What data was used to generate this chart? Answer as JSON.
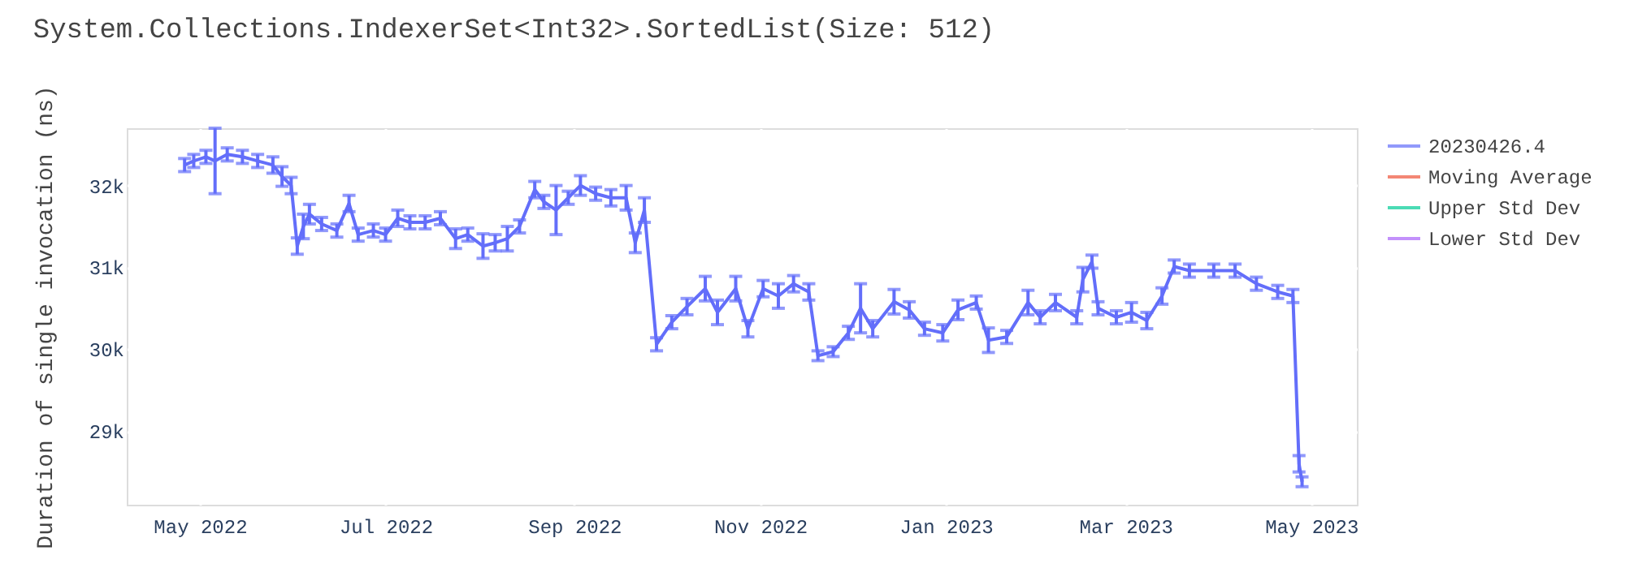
{
  "chart_data": {
    "type": "line",
    "title": "System.Collections.IndexerSet<Int32>.SortedList(Size: 512)",
    "ylabel": "Duration of single invocation (ns)",
    "x": [
      "2022-04-26",
      "2022-04-29",
      "2022-05-03",
      "2022-05-06",
      "2022-05-10",
      "2022-05-15",
      "2022-05-20",
      "2022-05-25",
      "2022-05-28",
      "2022-05-31",
      "2022-06-02",
      "2022-06-04",
      "2022-06-06",
      "2022-06-10",
      "2022-06-15",
      "2022-06-19",
      "2022-06-22",
      "2022-06-27",
      "2022-07-01",
      "2022-07-05",
      "2022-07-09",
      "2022-07-14",
      "2022-07-19",
      "2022-07-24",
      "2022-07-28",
      "2022-08-02",
      "2022-08-06",
      "2022-08-10",
      "2022-08-14",
      "2022-08-19",
      "2022-08-22",
      "2022-08-26",
      "2022-08-30",
      "2022-09-03",
      "2022-09-08",
      "2022-09-13",
      "2022-09-18",
      "2022-09-21",
      "2022-09-24",
      "2022-09-28",
      "2022-10-03",
      "2022-10-08",
      "2022-10-14",
      "2022-10-18",
      "2022-10-24",
      "2022-10-28",
      "2022-11-02",
      "2022-11-07",
      "2022-11-12",
      "2022-11-17",
      "2022-11-20",
      "2022-11-25",
      "2022-11-30",
      "2022-12-04",
      "2022-12-08",
      "2022-12-15",
      "2022-12-20",
      "2022-12-25",
      "2022-12-31",
      "2023-01-05",
      "2023-01-11",
      "2023-01-15",
      "2023-01-21",
      "2023-01-28",
      "2023-02-01",
      "2023-02-06",
      "2023-02-13",
      "2023-02-15",
      "2023-02-18",
      "2023-02-20",
      "2023-02-26",
      "2023-03-03",
      "2023-03-08",
      "2023-03-13",
      "2023-03-17",
      "2023-03-22",
      "2023-03-30",
      "2023-04-06",
      "2023-04-13",
      "2023-04-20",
      "2023-04-25",
      "2023-04-27",
      "2023-04-28"
    ],
    "series": [
      {
        "name": "20230426.4",
        "color": "#636efa",
        "values": [
          32250,
          32300,
          32350,
          32300,
          32380,
          32350,
          32300,
          32250,
          32110,
          32000,
          31260,
          31500,
          31650,
          31530,
          31450,
          31780,
          31400,
          31450,
          31400,
          31600,
          31550,
          31550,
          31600,
          31350,
          31400,
          31260,
          31300,
          31350,
          31500,
          31950,
          31800,
          31700,
          31850,
          32000,
          31900,
          31850,
          31850,
          31300,
          31700,
          30060,
          30330,
          30520,
          30740,
          30450,
          30740,
          30250,
          30740,
          30650,
          30800,
          30700,
          29920,
          29970,
          30200,
          30500,
          30250,
          30580,
          30480,
          30250,
          30200,
          30480,
          30570,
          30110,
          30150,
          30570,
          30390,
          30570,
          30390,
          30850,
          31070,
          30500,
          30390,
          30450,
          30350,
          30650,
          31010,
          30960,
          30960,
          30960,
          30800,
          30700,
          30650,
          28600,
          28380
        ],
        "errors": [
          80,
          80,
          80,
          400,
          80,
          80,
          80,
          100,
          120,
          100,
          100,
          150,
          120,
          80,
          80,
          100,
          80,
          80,
          80,
          100,
          80,
          80,
          80,
          120,
          80,
          150,
          100,
          150,
          80,
          100,
          80,
          300,
          80,
          120,
          80,
          100,
          150,
          120,
          150,
          80,
          80,
          100,
          150,
          150,
          150,
          100,
          100,
          150,
          100,
          100,
          60,
          60,
          80,
          300,
          100,
          150,
          100,
          80,
          100,
          120,
          80,
          150,
          80,
          150,
          80,
          100,
          80,
          150,
          80,
          80,
          80,
          120,
          100,
          100,
          80,
          80,
          80,
          80,
          80,
          80,
          80,
          100,
          60
        ]
      },
      {
        "name": "Moving Average",
        "color": "#ef553b",
        "values": [
          null,
          null,
          null,
          null,
          null,
          null,
          null,
          null,
          null,
          null,
          null,
          null,
          null,
          null,
          null,
          null,
          null,
          null,
          null,
          null,
          null,
          null,
          null,
          null,
          null,
          null,
          null,
          null,
          null,
          null,
          null,
          null,
          null,
          null,
          null,
          null,
          null,
          null,
          null,
          null,
          null,
          null,
          null,
          null,
          null,
          null,
          null,
          null,
          null,
          null,
          null,
          null,
          null,
          null,
          null,
          null,
          null,
          null,
          null,
          null,
          null,
          null,
          null,
          null,
          null,
          null,
          null,
          null,
          null,
          null,
          null,
          null,
          null,
          null,
          null,
          null,
          null,
          null,
          null,
          null,
          null,
          null,
          null
        ]
      },
      {
        "name": "Upper Std Dev",
        "color": "#00cc96",
        "values": [
          null,
          null,
          null,
          null,
          null,
          null,
          null,
          null,
          null,
          null,
          null,
          null,
          null,
          null,
          null,
          null,
          null,
          null,
          null,
          null,
          null,
          null,
          null,
          null,
          null,
          null,
          null,
          null,
          null,
          null,
          null,
          null,
          null,
          null,
          null,
          null,
          null,
          null,
          null,
          null,
          null,
          null,
          null,
          null,
          null,
          null,
          null,
          null,
          null,
          null,
          null,
          null,
          null,
          null,
          null,
          null,
          null,
          null,
          null,
          null,
          null,
          null,
          null,
          null,
          null,
          null,
          null,
          null,
          null,
          null,
          null,
          null,
          null,
          null,
          null,
          null,
          null,
          null,
          null,
          null,
          null,
          null,
          null
        ]
      },
      {
        "name": "Lower Std Dev",
        "color": "#ab63fa",
        "values": [
          null,
          null,
          null,
          null,
          null,
          null,
          null,
          null,
          null,
          null,
          null,
          null,
          null,
          null,
          null,
          null,
          null,
          null,
          null,
          null,
          null,
          null,
          null,
          null,
          null,
          null,
          null,
          null,
          null,
          null,
          null,
          null,
          null,
          null,
          null,
          null,
          null,
          null,
          null,
          null,
          null,
          null,
          null,
          null,
          null,
          null,
          null,
          null,
          null,
          null,
          null,
          null,
          null,
          null,
          null,
          null,
          null,
          null,
          null,
          null,
          null,
          null,
          null,
          null,
          null,
          null,
          null,
          null,
          null,
          null,
          null,
          null,
          null,
          null,
          null,
          null,
          null,
          null,
          null,
          null,
          null,
          null,
          null
        ]
      }
    ],
    "xlim": [
      "2022-04-07",
      "2023-05-16"
    ],
    "xticks": [
      {
        "value": "2022-05-01",
        "label": "May 2022"
      },
      {
        "value": "2022-07-01",
        "label": "Jul 2022"
      },
      {
        "value": "2022-09-01",
        "label": "Sep 2022"
      },
      {
        "value": "2022-11-01",
        "label": "Nov 2022"
      },
      {
        "value": "2023-01-01",
        "label": "Jan 2023"
      },
      {
        "value": "2023-03-01",
        "label": "Mar 2023"
      },
      {
        "value": "2023-05-01",
        "label": "May 2023"
      }
    ],
    "ylim": [
      28100,
      32700
    ],
    "yticks": [
      {
        "value": 29000,
        "label": "29k"
      },
      {
        "value": 30000,
        "label": "30k"
      },
      {
        "value": 31000,
        "label": "31k"
      },
      {
        "value": 32000,
        "label": "32k"
      }
    ],
    "grid": true,
    "legend": "right",
    "line_style": "solid"
  }
}
